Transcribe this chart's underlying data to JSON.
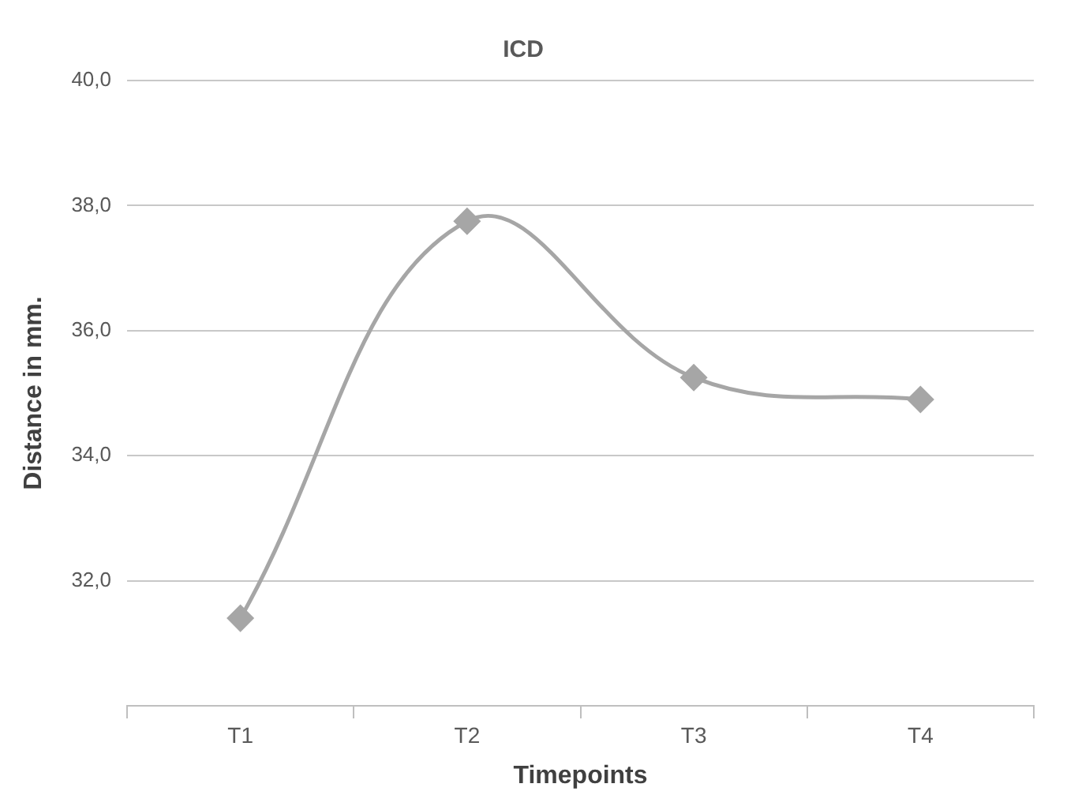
{
  "chart_data": {
    "type": "line",
    "title": "ICD",
    "xlabel": "Timepoints",
    "ylabel": "Distance in mm.",
    "categories": [
      "T1",
      "T2",
      "T3",
      "T4"
    ],
    "series": [
      {
        "color": "#a6a6a6",
        "values": [
          31.4,
          37.75,
          35.25,
          34.9
        ]
      }
    ],
    "ylim": [
      30,
      40
    ],
    "yticks": [
      {
        "value": 30,
        "label": null
      },
      {
        "value": 32,
        "label": "32,0"
      },
      {
        "value": 34,
        "label": "34,0"
      },
      {
        "value": 36,
        "label": "36,0"
      },
      {
        "value": 38,
        "label": "38,0"
      },
      {
        "value": 40,
        "label": "40,0"
      }
    ],
    "grid": "y",
    "legend": false,
    "marker": "diamond",
    "line_style": "solid"
  }
}
